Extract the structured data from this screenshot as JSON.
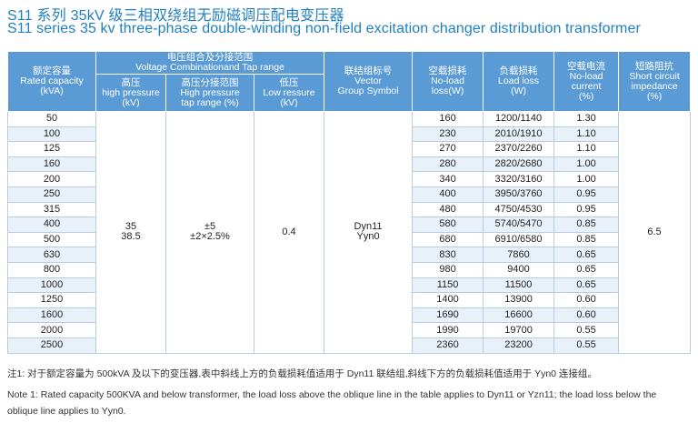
{
  "title_cn": "S11 系列 35kV 级三相双绕组无励磁调压配电变压器",
  "title_en": "S11 series 35 kv three-phase double-winding non-field excitation changer distribution transformer",
  "headers": {
    "capacity": [
      "额定容量",
      "Rated capacity",
      "(kVA)"
    ],
    "voltage_group": [
      "电压组合及分接范围",
      "Voltage Combinationand Tap range"
    ],
    "high": [
      "高压",
      "high pressure",
      "(kV)"
    ],
    "tap": [
      "高压分接范围",
      "High pressure",
      "tap range (%)"
    ],
    "low": [
      "低压",
      "Low ressure",
      "(kV)"
    ],
    "vector": [
      "联结组标号",
      "Vector",
      "Group Symbol"
    ],
    "noload": [
      "空载损耗",
      "No-load",
      "loss(W)"
    ],
    "load": [
      "负载损耗",
      "Load loss",
      "(W)"
    ],
    "current": [
      "空载电流",
      "No-load",
      "current",
      "(%)"
    ],
    "impedance": [
      "短路阻抗",
      "Short circuit",
      "impedance",
      "(%)"
    ]
  },
  "merged": {
    "high": [
      "35",
      "38.5"
    ],
    "tap": [
      "±5",
      "±2×2.5%"
    ],
    "low": "0.4",
    "vector": [
      "Dyn11",
      "Yyn0"
    ],
    "impedance": "6.5"
  },
  "rows": [
    {
      "cap": "50",
      "noload": "160",
      "load": "1200/1140",
      "current": "1.30"
    },
    {
      "cap": "100",
      "noload": "230",
      "load": "2010/1910",
      "current": "1.10"
    },
    {
      "cap": "125",
      "noload": "270",
      "load": "2370/2260",
      "current": "1.10"
    },
    {
      "cap": "160",
      "noload": "280",
      "load": "2820/2680",
      "current": "1.00"
    },
    {
      "cap": "200",
      "noload": "340",
      "load": "3320/3160",
      "current": "1.00"
    },
    {
      "cap": "250",
      "noload": "400",
      "load": "3950/3760",
      "current": "0.95"
    },
    {
      "cap": "315",
      "noload": "480",
      "load": "4750/4530",
      "current": "0.95"
    },
    {
      "cap": "400",
      "noload": "580",
      "load": "5740/5470",
      "current": "0.85"
    },
    {
      "cap": "500",
      "noload": "680",
      "load": "6910/6580",
      "current": "0.85"
    },
    {
      "cap": "630",
      "noload": "830",
      "load": "7860",
      "current": "0.65"
    },
    {
      "cap": "800",
      "noload": "980",
      "load": "9400",
      "current": "0.65"
    },
    {
      "cap": "1000",
      "noload": "1150",
      "load": "11500",
      "current": "0.65"
    },
    {
      "cap": "1250",
      "noload": "1400",
      "load": "13900",
      "current": "0.60"
    },
    {
      "cap": "1600",
      "noload": "1690",
      "load": "16600",
      "current": "0.60"
    },
    {
      "cap": "2000",
      "noload": "1990",
      "load": "19700",
      "current": "0.55"
    },
    {
      "cap": "2500",
      "noload": "2360",
      "load": "23200",
      "current": "0.55"
    }
  ],
  "notes": [
    "注1: 对于额定容量为 500kVA 及以下的变压器,表中斜线上方的负载损耗值适用于 Dyn11 联结组,斜线下方的负载损耗值适用于 Yyn0 连接组。",
    "Note 1: Rated capacity 500KVA and below transformer, the load loss above the oblique line in the table applies to Dyn11 or Yzn11; the load loss  below the",
    "oblique line applies to Yyn0."
  ],
  "colors": {
    "title": "#1f7fc2",
    "header_bg": "#5b9bd5",
    "row_alt": "#e8f1fa",
    "border": "#b9cde0"
  }
}
